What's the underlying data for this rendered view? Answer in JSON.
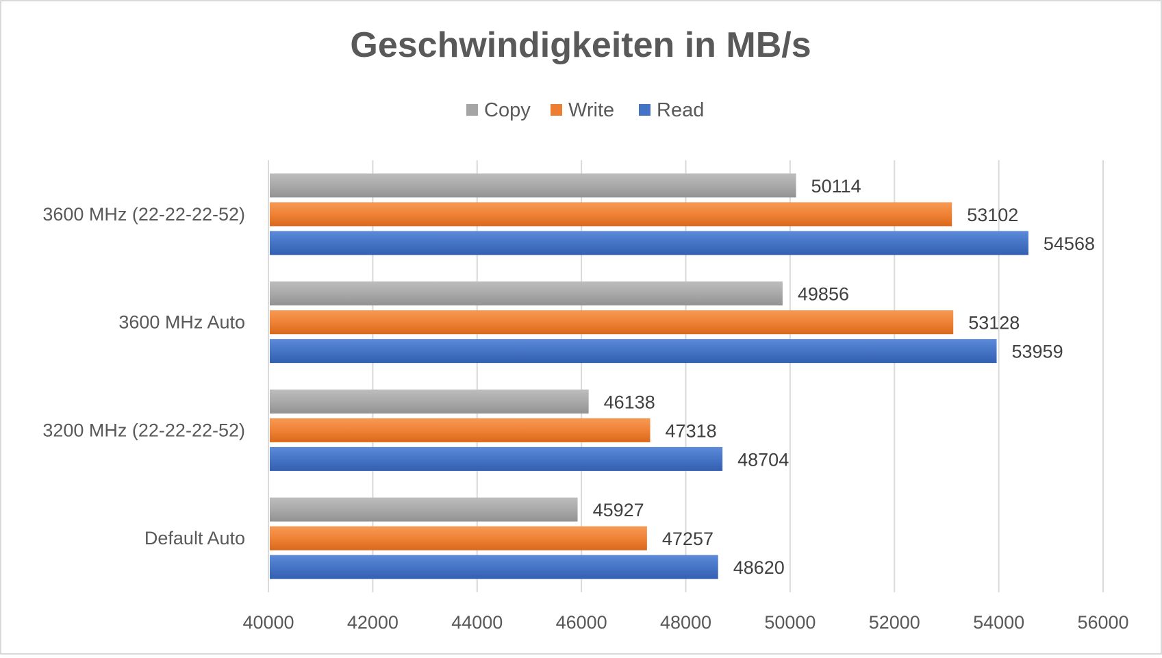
{
  "chart_data": {
    "type": "bar",
    "orientation": "horizontal",
    "title": "Geschwindigkeiten in MB/s",
    "xlabel": "",
    "ylabel": "",
    "categories": [
      "3600 MHz (22-22-22-52)",
      "3600 MHz Auto",
      "3200 MHz (22-22-22-52)",
      "Default Auto"
    ],
    "series": [
      {
        "name": "Copy",
        "color": "#a5a5a5",
        "values": [
          50114,
          49856,
          46138,
          45927
        ]
      },
      {
        "name": "Write",
        "color": "#ed7d31",
        "values": [
          53102,
          53128,
          47318,
          47257
        ]
      },
      {
        "name": "Read",
        "color": "#4472c4",
        "values": [
          54568,
          53959,
          48704,
          48620
        ]
      }
    ],
    "xlim": [
      40000,
      56000
    ],
    "xticks": [
      40000,
      42000,
      44000,
      46000,
      48000,
      50000,
      52000,
      54000,
      56000
    ],
    "grid": true,
    "legend_position": "top-center",
    "data_labels": true
  }
}
